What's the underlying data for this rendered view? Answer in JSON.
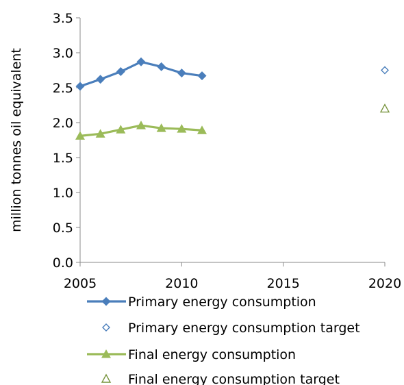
{
  "chart_data": {
    "type": "line",
    "ylabel": "million tonnes oil equivalent",
    "xlim": [
      2005,
      2020
    ],
    "ylim": [
      0,
      3.5
    ],
    "x_ticks": [
      2005,
      2010,
      2015,
      2020
    ],
    "y_ticks": [
      "0.0",
      "0.5",
      "1.0",
      "1.5",
      "2.0",
      "2.5",
      "3.0",
      "3.5"
    ],
    "grid": false,
    "legend_position": "bottom",
    "series": [
      {
        "name": "Primary energy consumption",
        "style": "line-diamond",
        "color": "#4a7ebb",
        "x": [
          2005,
          2006,
          2007,
          2008,
          2009,
          2010,
          2011
        ],
        "y": [
          2.52,
          2.62,
          2.73,
          2.87,
          2.8,
          2.71,
          2.67
        ]
      },
      {
        "name": "Primary energy consumption target",
        "style": "hollow-diamond",
        "color": "#4a7ebb",
        "x": [
          2020
        ],
        "y": [
          2.75
        ]
      },
      {
        "name": "Final energy consumption",
        "style": "line-triangle",
        "color": "#9bbb59",
        "x": [
          2005,
          2006,
          2007,
          2008,
          2009,
          2010,
          2011
        ],
        "y": [
          1.81,
          1.84,
          1.9,
          1.96,
          1.92,
          1.91,
          1.89
        ]
      },
      {
        "name": "Final energy consumption target",
        "style": "hollow-triangle",
        "color": "#77933c",
        "x": [
          2020
        ],
        "y": [
          2.2
        ]
      }
    ]
  }
}
